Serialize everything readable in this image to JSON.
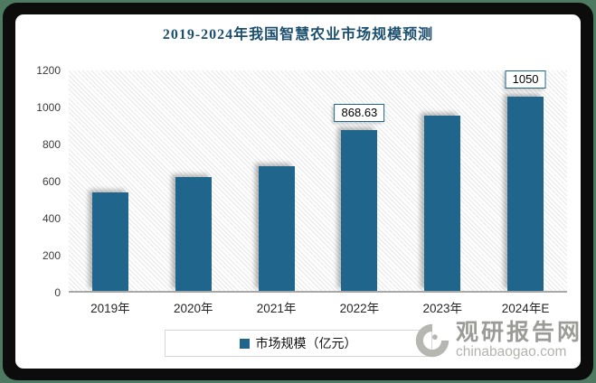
{
  "chart_data": {
    "type": "bar",
    "title": "2019-2024年我国智慧农业市场规模预测",
    "categories": [
      "2019年",
      "2020年",
      "2021年",
      "2022年",
      "2023年",
      "2024年E"
    ],
    "series": [
      {
        "name": "市场规模（亿元）",
        "values": [
          533,
          616,
          675,
          868.63,
          947,
          1050
        ]
      }
    ],
    "data_labels": [
      null,
      null,
      null,
      "868.63",
      null,
      "1050"
    ],
    "legend": "市场规模（亿元）",
    "legend_position": "bottom",
    "xlabel": "",
    "ylabel": "",
    "ylim": [
      0,
      1200
    ],
    "yticks": [
      0,
      200,
      400,
      600,
      800,
      1000,
      1200
    ],
    "grid": false,
    "plot_background": "diagonal-hatch"
  },
  "colors": {
    "bar": "#20658B",
    "title": "#1C4F6E",
    "label_box_border": "#1F6587",
    "axis_line": "#A8A8A8",
    "outer_edge_green": "#4E7A61",
    "frame_black": "#0C0C0C"
  },
  "watermark": {
    "name": "观研报告网",
    "url": "chinabaogao.com"
  }
}
